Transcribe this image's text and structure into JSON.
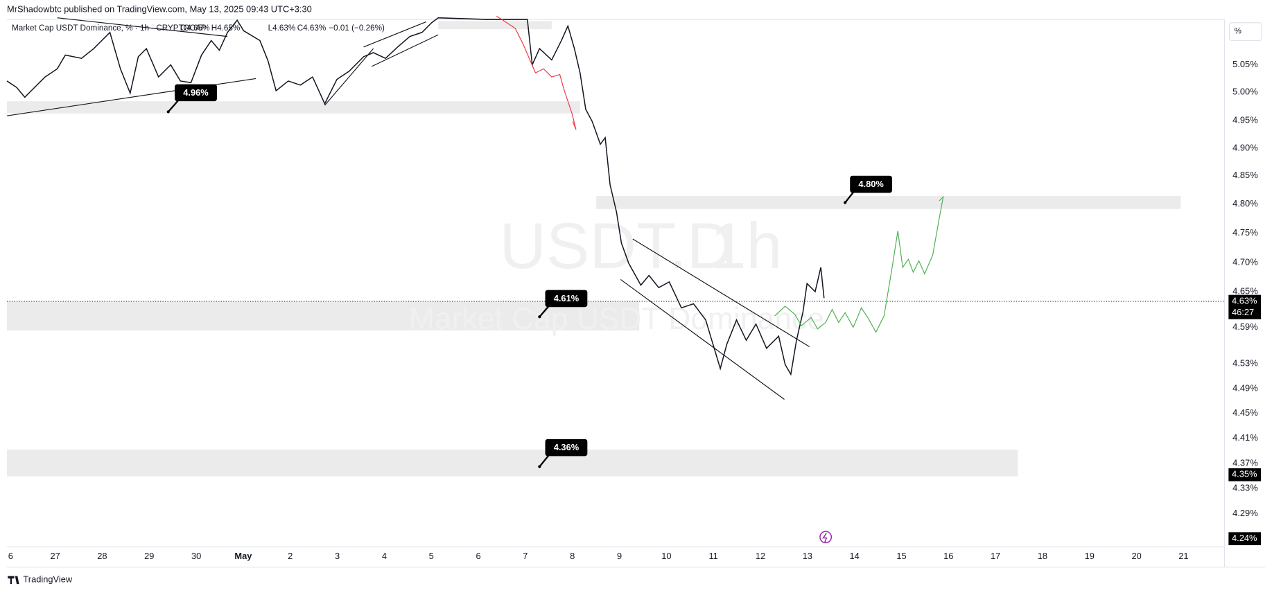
{
  "header": {
    "publisher": "MrShadowbtc published on TradingView.com, May 13, 2025 09:43 UTC+3:30"
  },
  "legend": {
    "symbol": "Market Cap USDT Dominance, % · 1h · CRYPTOCAP",
    "open": "O4.65%",
    "high": "H4.65%",
    "low": "L4.63%",
    "close": "C4.63%",
    "change": "−0.01 (−0.26%)"
  },
  "watermark": {
    "ticker": "USDT.D",
    "interval": "1h",
    "name": "Market Cap USDT Dominance"
  },
  "annotations": [
    "4.96%",
    "4.80%",
    "4.61%",
    "4.36%"
  ],
  "price_axis": {
    "unit": "%",
    "labels": [
      "5.05%",
      "5.00%",
      "4.95%",
      "4.90%",
      "4.85%",
      "4.80%",
      "4.75%",
      "4.70%",
      "4.65%",
      "4.59%",
      "4.53%",
      "4.49%",
      "4.45%",
      "4.41%",
      "4.37%",
      "4.33%",
      "4.29%"
    ],
    "last_price": "4.63%",
    "countdown": "46:27",
    "marker_1": "4.35%",
    "marker_2": "4.24%"
  },
  "time_axis": {
    "labels": [
      "6",
      "27",
      "28",
      "29",
      "30",
      "May",
      "2",
      "3",
      "4",
      "5",
      "6",
      "7",
      "8",
      "9",
      "10",
      "11",
      "12",
      "13",
      "14",
      "15",
      "16",
      "17",
      "18",
      "19",
      "20",
      "21"
    ]
  },
  "footer": {
    "brand": "TradingView"
  }
}
